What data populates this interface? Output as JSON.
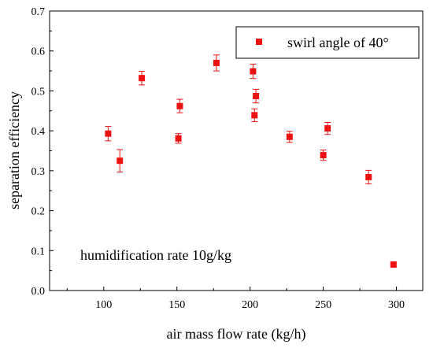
{
  "chart_data": {
    "type": "scatter",
    "xlabel": "air mass flow rate (kg/h)",
    "ylabel": "separation efficiency",
    "xlim": [
      63,
      318
    ],
    "ylim": [
      0.0,
      0.7
    ],
    "xticks": [
      "100",
      "150",
      "200",
      "250",
      "300"
    ],
    "yticks": [
      "0.0",
      "0.1",
      "0.2",
      "0.3",
      "0.4",
      "0.5",
      "0.6",
      "0.7"
    ],
    "legend_position": "top-right",
    "annotation": "humidification rate 10g/kg",
    "color": "#ee1111",
    "series": [
      {
        "name": "swirl angle of 40°",
        "points": [
          {
            "x": 103,
            "y": 0.393,
            "err": 0.018
          },
          {
            "x": 111,
            "y": 0.325,
            "err": 0.028
          },
          {
            "x": 126,
            "y": 0.532,
            "err": 0.017
          },
          {
            "x": 151,
            "y": 0.381,
            "err": 0.012
          },
          {
            "x": 152,
            "y": 0.462,
            "err": 0.017
          },
          {
            "x": 177,
            "y": 0.57,
            "err": 0.02
          },
          {
            "x": 202,
            "y": 0.549,
            "err": 0.018
          },
          {
            "x": 203,
            "y": 0.439,
            "err": 0.016
          },
          {
            "x": 204,
            "y": 0.487,
            "err": 0.017
          },
          {
            "x": 227,
            "y": 0.385,
            "err": 0.014
          },
          {
            "x": 250,
            "y": 0.339,
            "err": 0.013
          },
          {
            "x": 253,
            "y": 0.406,
            "err": 0.015
          },
          {
            "x": 281,
            "y": 0.284,
            "err": 0.017
          },
          {
            "x": 298,
            "y": 0.065,
            "err": 0.0
          }
        ]
      }
    ]
  }
}
